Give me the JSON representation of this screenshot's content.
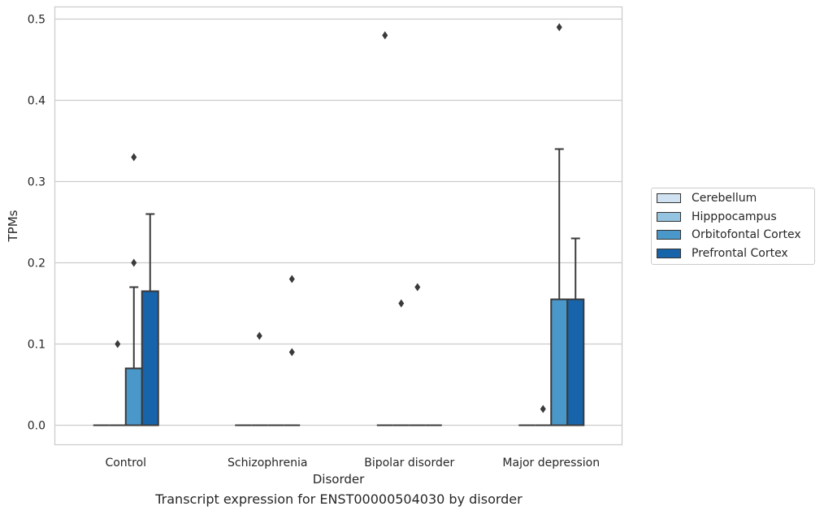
{
  "chart_data": {
    "type": "box",
    "xlabel": "Disorder",
    "ylabel": "TPMs",
    "caption": "Transcript expression for ENST00000504030 by disorder",
    "categories": [
      "Control",
      "Schizophrenia",
      "Bipolar disorder",
      "Major depression"
    ],
    "ylim": [
      -0.024,
      0.515
    ],
    "yticks": [
      0.0,
      0.1,
      0.2,
      0.3,
      0.4,
      0.5
    ],
    "ytick_labels": [
      "0.0",
      "0.1",
      "0.2",
      "0.3",
      "0.4",
      "0.5"
    ],
    "grid": true,
    "legend_position": "right",
    "series": [
      {
        "name": "Cerebellum",
        "color": "#d0e1f2",
        "boxes": [
          {
            "q1": 0,
            "median": 0,
            "q3": 0,
            "whisker_low": 0,
            "whisker_high": 0,
            "outliers": []
          },
          {
            "q1": 0,
            "median": 0,
            "q3": 0,
            "whisker_low": 0,
            "whisker_high": 0,
            "outliers": []
          },
          {
            "q1": 0,
            "median": 0,
            "q3": 0,
            "whisker_low": 0,
            "whisker_high": 0,
            "outliers": [
              0.48
            ]
          },
          {
            "q1": 0,
            "median": 0,
            "q3": 0,
            "whisker_low": 0,
            "whisker_high": 0,
            "outliers": []
          }
        ]
      },
      {
        "name": "Hipppocampus",
        "color": "#94c4df",
        "boxes": [
          {
            "q1": 0,
            "median": 0,
            "q3": 0,
            "whisker_low": 0,
            "whisker_high": 0,
            "outliers": [
              0.1
            ]
          },
          {
            "q1": 0,
            "median": 0,
            "q3": 0,
            "whisker_low": 0,
            "whisker_high": 0,
            "outliers": [
              0.11
            ]
          },
          {
            "q1": 0,
            "median": 0,
            "q3": 0,
            "whisker_low": 0,
            "whisker_high": 0,
            "outliers": [
              0.15
            ]
          },
          {
            "q1": 0,
            "median": 0,
            "q3": 0,
            "whisker_low": 0,
            "whisker_high": 0,
            "outliers": [
              0.02
            ]
          }
        ]
      },
      {
        "name": "Orbitofontal Cortex",
        "color": "#4a98c9",
        "boxes": [
          {
            "q1": 0,
            "median": 0,
            "q3": 0.07,
            "whisker_low": 0,
            "whisker_high": 0.17,
            "outliers": [
              0.2,
              0.33
            ]
          },
          {
            "q1": 0,
            "median": 0,
            "q3": 0,
            "whisker_low": 0,
            "whisker_high": 0,
            "outliers": []
          },
          {
            "q1": 0,
            "median": 0,
            "q3": 0,
            "whisker_low": 0,
            "whisker_high": 0,
            "outliers": [
              0.17
            ]
          },
          {
            "q1": 0,
            "median": 0,
            "q3": 0.155,
            "whisker_low": 0,
            "whisker_high": 0.34,
            "outliers": [
              0.49
            ]
          }
        ]
      },
      {
        "name": "Prefrontal Cortex",
        "color": "#1764ab",
        "boxes": [
          {
            "q1": 0,
            "median": 0,
            "q3": 0.165,
            "whisker_low": 0,
            "whisker_high": 0.26,
            "outliers": []
          },
          {
            "q1": 0,
            "median": 0,
            "q3": 0,
            "whisker_low": 0,
            "whisker_high": 0,
            "outliers": [
              0.09,
              0.18
            ]
          },
          {
            "q1": 0,
            "median": 0,
            "q3": 0,
            "whisker_low": 0,
            "whisker_high": 0,
            "outliers": []
          },
          {
            "q1": 0,
            "median": 0,
            "q3": 0.155,
            "whisker_low": 0,
            "whisker_high": 0.23,
            "outliers": []
          }
        ]
      }
    ]
  }
}
